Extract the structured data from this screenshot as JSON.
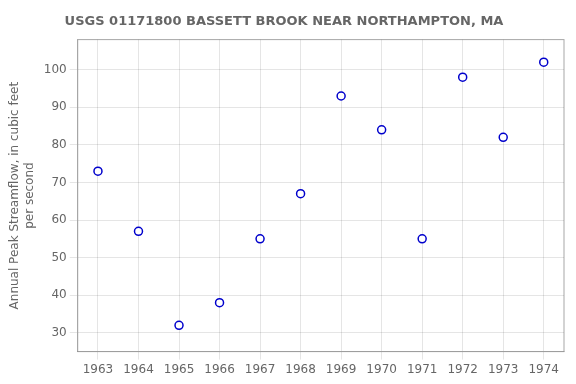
{
  "chart_data": {
    "type": "scatter",
    "title": "USGS 01171800 BASSETT BROOK NEAR NORTHAMPTON, MA",
    "ylabel": "Annual Peak Streamflow, in cubic feet\nper second",
    "x": [
      1963,
      1964,
      1965,
      1966,
      1967,
      1968,
      1969,
      1970,
      1971,
      1972,
      1973,
      1974
    ],
    "values": [
      73,
      57,
      32,
      38,
      55,
      67,
      93,
      84,
      55,
      98,
      82,
      102
    ],
    "color": "#0000cc",
    "marker": "open_circle",
    "xlim": [
      1962.5,
      1974.5
    ],
    "xticks": [
      1963,
      1964,
      1965,
      1966,
      1967,
      1968,
      1969,
      1970,
      1971,
      1972,
      1973,
      1974
    ],
    "ylim": [
      25,
      108
    ],
    "yticks": [
      30,
      40,
      50,
      60,
      70,
      80,
      90,
      100
    ],
    "grid": true
  }
}
